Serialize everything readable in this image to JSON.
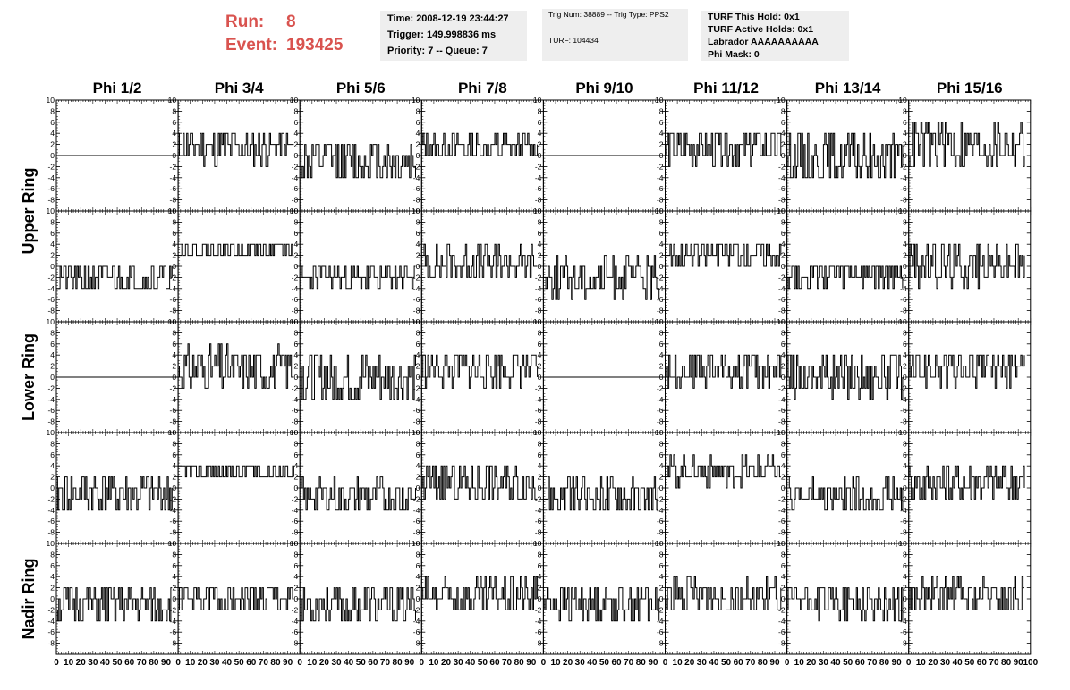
{
  "header": {
    "run_label": "Run:",
    "run_value": "8",
    "event_label": "Event:",
    "event_value": "193425"
  },
  "info_box_1": {
    "time": "Time: 2008-12-19 23:44:27",
    "trigger": "Trigger: 149.998836 ms",
    "priority": "Priority: 7 -- Queue: 7"
  },
  "info_box_2": {
    "trig": "Trig Num: 38889 -- Trig Type: PPS2",
    "turf": "TURF: 104434"
  },
  "info_box_3": {
    "hold": "TURF This Hold: 0x1",
    "active": "TURF Active Holds: 0x1",
    "labrador": "Labrador AAAAAAAAAA",
    "phimask": "Phi Mask: 0"
  },
  "colors": {
    "run_text": "#d9534f",
    "info_bg": "#eeeeee",
    "trace": "#000000"
  },
  "chart_data": {
    "type": "line",
    "column_titles": [
      "Phi 1/2",
      "Phi 3/4",
      "Phi 5/6",
      "Phi 7/8",
      "Phi 9/10",
      "Phi 11/12",
      "Phi 13/14",
      "Phi 15/16"
    ],
    "ring_labels": [
      "Upper Ring",
      "Lower Ring",
      "Nadir Ring"
    ],
    "ylim": [
      -10,
      10
    ],
    "yticks": [
      -8,
      -6,
      -4,
      -2,
      0,
      2,
      4,
      6,
      8,
      10
    ],
    "ytick_labels": [
      "-8",
      "-6",
      "-4",
      "-2",
      "0",
      "2",
      "4",
      "6",
      "8",
      "10"
    ],
    "xlim": [
      0,
      100
    ],
    "xticks": [
      0,
      10,
      20,
      30,
      40,
      50,
      60,
      70,
      80,
      90,
      100
    ],
    "xtick_labels": [
      "0",
      "10",
      "20",
      "30",
      "40",
      "50",
      "60",
      "70",
      "80",
      "90",
      "100"
    ],
    "x_end_points": 95,
    "rows": 5,
    "cols": 8,
    "panels_note_series": [
      [
        {
          "flat": true
        },
        {
          "base": 1.5,
          "amp": 3,
          "seed": 11
        },
        {
          "base": -1,
          "amp": 4,
          "seed": 12
        },
        {
          "base": 1.5,
          "amp": 2.5,
          "seed": 13
        },
        {
          "flat": true
        },
        {
          "base": 1.5,
          "amp": 3.5,
          "seed": 14
        },
        {
          "base": -0.5,
          "amp": 4.5,
          "seed": 15
        },
        {
          "base": 2,
          "amp": 4.5,
          "seed": 16
        }
      ],
      [
        {
          "base": -2,
          "amp": 3,
          "seed": 21
        },
        {
          "base": 3,
          "amp": 2,
          "seed": 22
        },
        {
          "base": -2,
          "amp": 2.5,
          "seed": 23
        },
        {
          "base": 0.5,
          "amp": 3.5,
          "seed": 24
        },
        {
          "base": -2,
          "amp": 3.5,
          "seed": 25
        },
        {
          "base": 2.5,
          "amp": 2.5,
          "seed": 26
        },
        {
          "base": -1.5,
          "amp": 2.5,
          "seed": 27
        },
        {
          "base": 0.5,
          "amp": 4,
          "seed": 28
        }
      ],
      [
        {
          "flat": true
        },
        {
          "base": 1.5,
          "amp": 4,
          "seed": 31
        },
        {
          "base": 0,
          "amp": 5,
          "seed": 32
        },
        {
          "base": 1.5,
          "amp": 3.5,
          "seed": 33
        },
        {
          "flat": true
        },
        {
          "base": 1.5,
          "amp": 3,
          "seed": 34
        },
        {
          "base": 0.5,
          "amp": 4,
          "seed": 35
        },
        {
          "base": 1.5,
          "amp": 3.5,
          "seed": 36
        }
      ],
      [
        {
          "base": -1,
          "amp": 4,
          "seed": 41
        },
        {
          "base": 3,
          "amp": 2,
          "seed": 42
        },
        {
          "base": -1.5,
          "amp": 3,
          "seed": 43
        },
        {
          "base": 1,
          "amp": 4,
          "seed": 44
        },
        {
          "base": -1.5,
          "amp": 3.5,
          "seed": 45
        },
        {
          "base": 3,
          "amp": 2.5,
          "seed": 46
        },
        {
          "base": -1.5,
          "amp": 3,
          "seed": 47
        },
        {
          "base": 1,
          "amp": 3.5,
          "seed": 48
        }
      ],
      [
        {
          "base": -1,
          "amp": 3.5,
          "seed": 51
        },
        {
          "base": 0,
          "amp": 3,
          "seed": 52
        },
        {
          "base": -1,
          "amp": 3.5,
          "seed": 53
        },
        {
          "base": 0.5,
          "amp": 3.5,
          "seed": 54
        },
        {
          "base": -0.5,
          "amp": 3.5,
          "seed": 55
        },
        {
          "base": 0.5,
          "amp": 3.5,
          "seed": 56
        },
        {
          "base": -0.5,
          "amp": 3.5,
          "seed": 57
        },
        {
          "base": 0.5,
          "amp": 3,
          "seed": 58
        }
      ]
    ]
  }
}
